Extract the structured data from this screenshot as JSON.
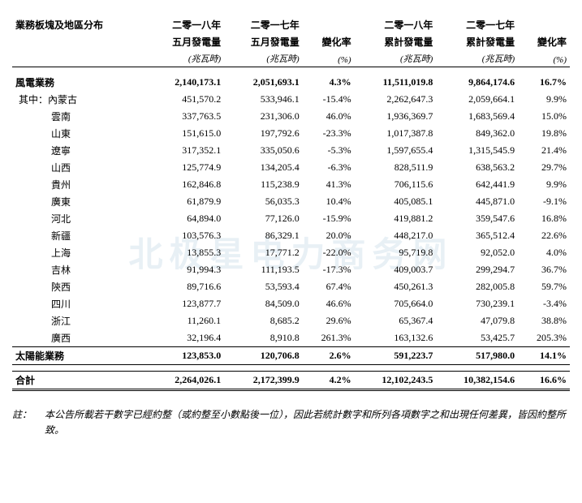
{
  "table": {
    "columns": {
      "c0": {
        "l1": "業務板塊及地區分布",
        "l2": "",
        "l3": ""
      },
      "c1": {
        "l1": "二零一八年",
        "l2": "五月發電量",
        "l3": "(兆瓦時)"
      },
      "c2": {
        "l1": "二零一七年",
        "l2": "五月發電量",
        "l3": "(兆瓦時)"
      },
      "c3": {
        "l1": "",
        "l2": "變化率",
        "l3": "(%)"
      },
      "c4": {
        "l1": "二零一八年",
        "l2": "累計發電量",
        "l3": "(兆瓦時)"
      },
      "c5": {
        "l1": "二零一七年",
        "l2": "累計發電量",
        "l3": "(兆瓦時)"
      },
      "c6": {
        "l1": "",
        "l2": "變化率",
        "l3": "(%)"
      }
    },
    "wind_header": {
      "name": "風電業務",
      "c1": "2,140,173.1",
      "c2": "2,051,693.1",
      "c3": "4.3%",
      "c4": "11,511,019.8",
      "c5": "9,864,174.6",
      "c6": "16.7%"
    },
    "wind_prefix": "其中：",
    "wind_rows": [
      {
        "name": "內蒙古",
        "c1": "451,570.2",
        "c2": "533,946.1",
        "c3": "-15.4%",
        "c4": "2,262,647.3",
        "c5": "2,059,664.1",
        "c6": "9.9%"
      },
      {
        "name": "雲南",
        "c1": "337,763.5",
        "c2": "231,306.0",
        "c3": "46.0%",
        "c4": "1,936,369.7",
        "c5": "1,683,569.4",
        "c6": "15.0%"
      },
      {
        "name": "山東",
        "c1": "151,615.0",
        "c2": "197,792.6",
        "c3": "-23.3%",
        "c4": "1,017,387.8",
        "c5": "849,362.0",
        "c6": "19.8%"
      },
      {
        "name": "遼寧",
        "c1": "317,352.1",
        "c2": "335,050.6",
        "c3": "-5.3%",
        "c4": "1,597,655.4",
        "c5": "1,315,545.9",
        "c6": "21.4%"
      },
      {
        "name": "山西",
        "c1": "125,774.9",
        "c2": "134,205.4",
        "c3": "-6.3%",
        "c4": "828,511.9",
        "c5": "638,563.2",
        "c6": "29.7%"
      },
      {
        "name": "貴州",
        "c1": "162,846.8",
        "c2": "115,238.9",
        "c3": "41.3%",
        "c4": "706,115.6",
        "c5": "642,441.9",
        "c6": "9.9%"
      },
      {
        "name": "廣東",
        "c1": "61,879.9",
        "c2": "56,035.3",
        "c3": "10.4%",
        "c4": "405,085.1",
        "c5": "445,871.0",
        "c6": "-9.1%"
      },
      {
        "name": "河北",
        "c1": "64,894.0",
        "c2": "77,126.0",
        "c3": "-15.9%",
        "c4": "419,881.2",
        "c5": "359,547.6",
        "c6": "16.8%"
      },
      {
        "name": "新疆",
        "c1": "103,576.3",
        "c2": "86,329.1",
        "c3": "20.0%",
        "c4": "448,217.0",
        "c5": "365,512.4",
        "c6": "22.6%"
      },
      {
        "name": "上海",
        "c1": "13,855.3",
        "c2": "17,771.2",
        "c3": "-22.0%",
        "c4": "95,719.8",
        "c5": "92,052.0",
        "c6": "4.0%"
      },
      {
        "name": "吉林",
        "c1": "91,994.3",
        "c2": "111,193.5",
        "c3": "-17.3%",
        "c4": "409,003.7",
        "c5": "299,294.7",
        "c6": "36.7%"
      },
      {
        "name": "陝西",
        "c1": "89,716.6",
        "c2": "53,593.4",
        "c3": "67.4%",
        "c4": "450,261.3",
        "c5": "282,005.8",
        "c6": "59.7%"
      },
      {
        "name": "四川",
        "c1": "123,877.7",
        "c2": "84,509.0",
        "c3": "46.6%",
        "c4": "705,664.0",
        "c5": "730,239.1",
        "c6": "-3.4%"
      },
      {
        "name": "浙江",
        "c1": "11,260.1",
        "c2": "8,685.2",
        "c3": "29.6%",
        "c4": "65,367.4",
        "c5": "47,079.8",
        "c6": "38.8%"
      },
      {
        "name": "廣西",
        "c1": "32,196.4",
        "c2": "8,910.8",
        "c3": "261.3%",
        "c4": "163,132.6",
        "c5": "53,425.7",
        "c6": "205.3%"
      }
    ],
    "solar": {
      "name": "太陽能業務",
      "c1": "123,853.0",
      "c2": "120,706.8",
      "c3": "2.6%",
      "c4": "591,223.7",
      "c5": "517,980.0",
      "c6": "14.1%"
    },
    "total": {
      "name": "合計",
      "c1": "2,264,026.1",
      "c2": "2,172,399.9",
      "c3": "4.2%",
      "c4": "12,102,243.5",
      "c5": "10,382,154.6",
      "c6": "16.6%"
    }
  },
  "note": {
    "label": "註：",
    "text": "本公告所載若干數字已經約整（或約整至小數點後一位），因此若統計數字和所列各項數字之和出現任何差異，皆因約整所致。"
  }
}
